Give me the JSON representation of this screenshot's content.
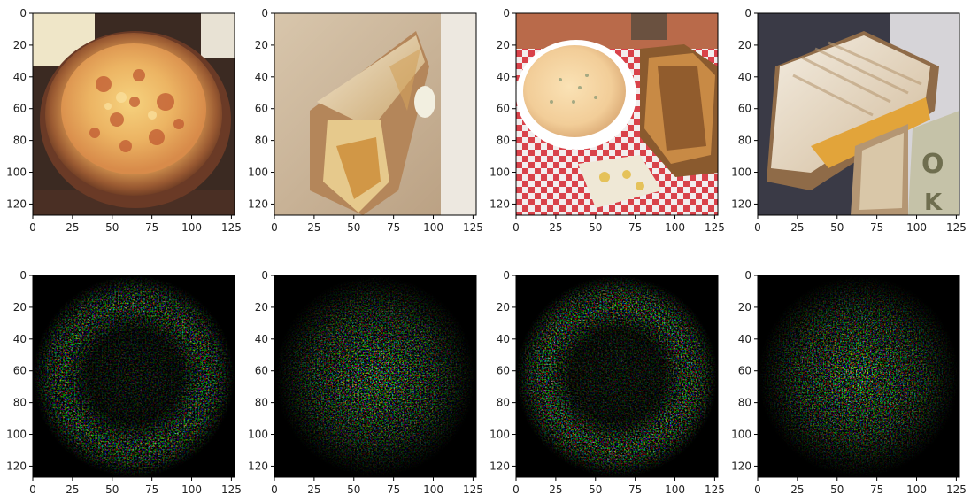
{
  "figure": {
    "grid": false,
    "colors": {
      "axis": "#000000",
      "tick_text": "#222222",
      "saliency_background": "#000000"
    }
  },
  "chart_data": [
    {
      "type": "image",
      "content": "pizza",
      "xlim": [
        0,
        127
      ],
      "ylim": [
        127,
        0
      ],
      "xticks": [
        "0",
        "25",
        "50",
        "75",
        "100",
        "125"
      ],
      "yticks": [
        "0",
        "20",
        "40",
        "60",
        "80",
        "100",
        "120"
      ]
    },
    {
      "type": "image",
      "content": "grilled cheese sandwich half",
      "xlim": [
        0,
        127
      ],
      "ylim": [
        127,
        0
      ],
      "xticks": [
        "0",
        "25",
        "50",
        "75",
        "100",
        "125"
      ],
      "yticks": [
        "0",
        "20",
        "40",
        "60",
        "80",
        "100",
        "120"
      ]
    },
    {
      "type": "image",
      "content": "soup bowl with grilled cheese",
      "xlim": [
        0,
        127
      ],
      "ylim": [
        127,
        0
      ],
      "xticks": [
        "0",
        "25",
        "50",
        "75",
        "100",
        "125"
      ],
      "yticks": [
        "0",
        "20",
        "40",
        "60",
        "80",
        "100",
        "120"
      ]
    },
    {
      "type": "image",
      "content": "grilled cheese sandwich",
      "xlim": [
        0,
        127
      ],
      "ylim": [
        127,
        0
      ],
      "xticks": [
        "0",
        "25",
        "50",
        "75",
        "100",
        "125"
      ],
      "yticks": [
        "0",
        "20",
        "40",
        "60",
        "80",
        "100",
        "120"
      ]
    },
    {
      "type": "heatmap",
      "content": "saliency map (pizza)",
      "xlim": [
        0,
        127
      ],
      "ylim": [
        127,
        0
      ],
      "xticks": [
        "0",
        "25",
        "50",
        "75",
        "100",
        "125"
      ],
      "yticks": [
        "0",
        "20",
        "40",
        "60",
        "80",
        "100",
        "120"
      ]
    },
    {
      "type": "heatmap",
      "content": "saliency map (sandwich half)",
      "xlim": [
        0,
        127
      ],
      "ylim": [
        127,
        0
      ],
      "xticks": [
        "0",
        "25",
        "50",
        "75",
        "100",
        "125"
      ],
      "yticks": [
        "0",
        "20",
        "40",
        "60",
        "80",
        "100",
        "120"
      ]
    },
    {
      "type": "heatmap",
      "content": "saliency map (soup and sandwich)",
      "xlim": [
        0,
        127
      ],
      "ylim": [
        127,
        0
      ],
      "xticks": [
        "0",
        "25",
        "50",
        "75",
        "100",
        "125"
      ],
      "yticks": [
        "0",
        "20",
        "40",
        "60",
        "80",
        "100",
        "120"
      ]
    },
    {
      "type": "heatmap",
      "content": "saliency map (sandwich)",
      "xlim": [
        0,
        127
      ],
      "ylim": [
        127,
        0
      ],
      "xticks": [
        "0",
        "25",
        "50",
        "75",
        "100",
        "125"
      ],
      "yticks": [
        "0",
        "20",
        "40",
        "60",
        "80",
        "100",
        "120"
      ]
    }
  ]
}
